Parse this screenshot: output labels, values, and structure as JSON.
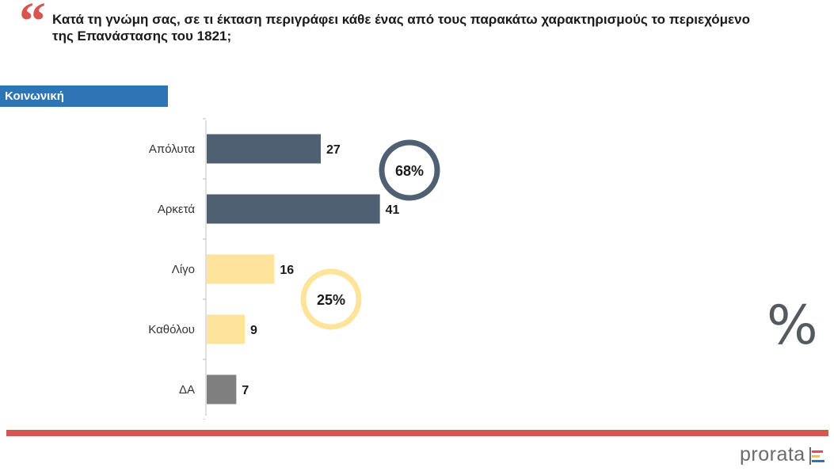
{
  "header": {
    "quote_icon": "quote-icon",
    "question": "Κατά τη γνώμη σας, σε τι έκταση περιγράφει κάθε ένας από τους παρακάτω χαρακτηρισμούς το περιεχόμενο της Επανάστασης του 1821;"
  },
  "section": {
    "label": "Κοινωνική"
  },
  "chart_data": {
    "type": "bar",
    "orientation": "horizontal",
    "categories": [
      "Απόλυτα",
      "Αρκετά",
      "Λίγο",
      "Καθόλου",
      "ΔΑ"
    ],
    "values": [
      27,
      41,
      16,
      9,
      7
    ],
    "colors": [
      "#4f6073",
      "#4f6073",
      "#fde49a",
      "#fde49a",
      "#7f7f7f"
    ],
    "summaries": [
      {
        "label": "68%",
        "color": "#4f6073"
      },
      {
        "label": "25%",
        "color": "#fde49a"
      }
    ],
    "xlim": [
      0,
      45
    ]
  },
  "decor": {
    "percent_symbol": "%"
  },
  "footer": {
    "brand": "prorata",
    "brand_colors": [
      "#d9534f",
      "#f5c242",
      "#2e75b6"
    ]
  }
}
